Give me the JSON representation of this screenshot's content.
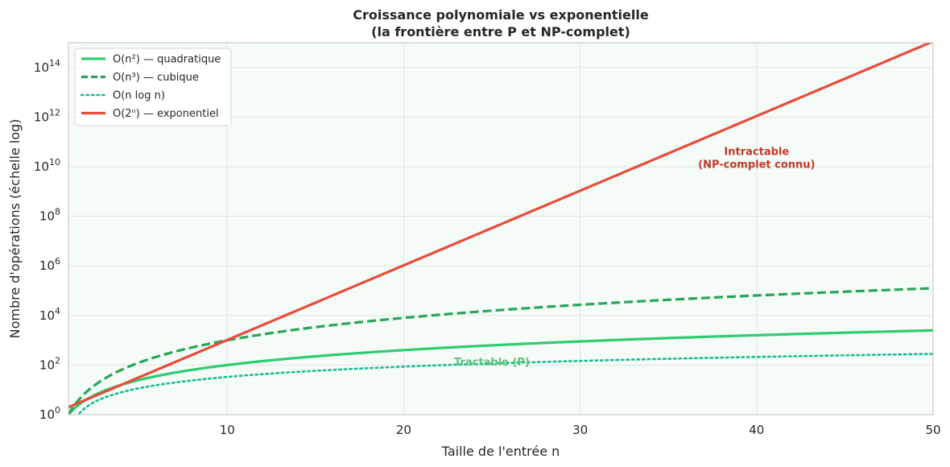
{
  "chart_data": {
    "type": "line",
    "title_line1": "Croissance polynomiale vs exponentielle",
    "title_line2": "(la frontière entre P et NP-complet)",
    "xlabel": "Taille de l'entrée n",
    "ylabel": "Nombre d'opérations (échelle log)",
    "xlim": [
      1,
      50
    ],
    "ylim": [
      1,
      1000000000000000
    ],
    "y_scale": "log",
    "grid": true,
    "background_color": "#f5fbf6",
    "x_ticks": [
      10,
      20,
      30,
      40,
      50
    ],
    "x_tick_labels": [
      "10",
      "20",
      "30",
      "40",
      "50"
    ],
    "y_ticks_exponents": [
      0,
      2,
      4,
      6,
      8,
      10,
      12,
      14
    ],
    "y_tick_base": "10",
    "y_tick_exponent_labels": [
      "0",
      "2",
      "4",
      "6",
      "8",
      "10",
      "12",
      "14"
    ],
    "legend_position": "top-left",
    "series": [
      {
        "name": "O(n²) — quadratique",
        "formula": "n^2",
        "color": "#2ecc71",
        "style": "solid"
      },
      {
        "name": "O(n³) — cubique",
        "formula": "n^3",
        "color": "#27a55a",
        "style": "dashed"
      },
      {
        "name": "O(n log n)",
        "formula": "n*log2(n)",
        "color": "#1abc9c",
        "style": "dotted"
      },
      {
        "name": "O(2ⁿ) — exponentiel",
        "formula": "2^n",
        "color": "#e74c3c",
        "style": "solid"
      }
    ],
    "annotations": [
      {
        "line1": "Intractable",
        "line2": "(NP-complet connu)",
        "x": 40,
        "y": 30000000000,
        "color": "#c0392b"
      },
      {
        "line1": "Tractable (P)",
        "line2": "",
        "x": 25,
        "y": 140,
        "color": "#5cc27c"
      }
    ]
  }
}
